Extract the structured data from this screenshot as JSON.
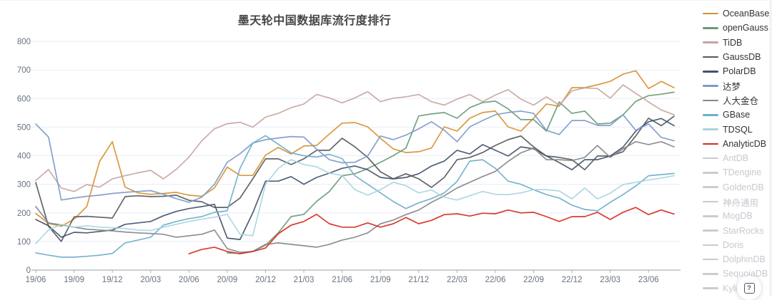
{
  "chart_data": {
    "type": "line",
    "title": "墨天轮中国数据库流行度排行",
    "xlabel": "",
    "ylabel": "",
    "ylim": [
      0,
      800
    ],
    "y_ticks": [
      0,
      100,
      200,
      300,
      400,
      500,
      600,
      700,
      800
    ],
    "grid": true,
    "legend_position": "right",
    "x": [
      "19/06",
      "19/07",
      "19/08",
      "19/09",
      "19/10",
      "19/11",
      "19/12",
      "20/01",
      "20/02",
      "20/03",
      "20/04",
      "20/05",
      "20/06",
      "20/07",
      "20/08",
      "20/09",
      "20/10",
      "20/11",
      "20/12",
      "21/01",
      "21/02",
      "21/03",
      "21/04",
      "21/05",
      "21/06",
      "21/07",
      "21/08",
      "21/09",
      "21/10",
      "21/11",
      "21/12",
      "22/01",
      "22/02",
      "22/03",
      "22/04",
      "22/05",
      "22/06",
      "22/07",
      "22/08",
      "22/09",
      "22/10",
      "22/11",
      "22/12",
      "23/01",
      "23/02",
      "23/03",
      "23/04",
      "23/05",
      "23/06",
      "23/07",
      "23/08"
    ],
    "x_tick_labels": [
      "19/06",
      "19/09",
      "19/12",
      "20/03",
      "20/06",
      "20/09",
      "20/12",
      "21/03",
      "21/06",
      "21/09",
      "21/12",
      "22/03",
      "22/06",
      "22/09",
      "22/12",
      "23/03",
      "23/06"
    ],
    "series": [
      {
        "name": "OceanBase",
        "color": "#d89030",
        "active": true,
        "values": [
          198,
          163,
          153,
          178,
          222,
          380,
          449,
          290,
          270,
          265,
          268,
          272,
          262,
          258,
          287,
          360,
          331,
          331,
          402,
          429,
          406,
          434,
          436,
          476,
          514,
          516,
          501,
          461,
          424,
          411,
          414,
          427,
          501,
          486,
          531,
          551,
          556,
          501,
          486,
          531,
          581,
          573,
          638,
          638,
          648,
          660,
          685,
          697,
          635,
          660,
          638
        ]
      },
      {
        "name": "openGauss",
        "color": "#6a9a76",
        "active": true,
        "values": [
          null,
          null,
          null,
          null,
          null,
          null,
          null,
          null,
          null,
          null,
          null,
          null,
          null,
          null,
          null,
          60,
          58,
          65,
          87,
          130,
          187,
          195,
          240,
          275,
          330,
          337,
          355,
          377,
          400,
          427,
          539,
          546,
          551,
          531,
          568,
          586,
          591,
          564,
          526,
          526,
          486,
          588,
          548,
          556,
          511,
          514,
          543,
          590,
          610,
          615,
          622
        ]
      },
      {
        "name": "TiDB",
        "color": "#c7a5a2",
        "active": true,
        "values": [
          313,
          352,
          287,
          275,
          299,
          290,
          319,
          330,
          340,
          349,
          319,
          352,
          395,
          452,
          494,
          512,
          517,
          500,
          535,
          548,
          568,
          581,
          614,
          602,
          585,
          602,
          624,
          589,
          601,
          606,
          614,
          589,
          577,
          598,
          614,
          589,
          612,
          631,
          598,
          577,
          606,
          577,
          627,
          637,
          635,
          601,
          648,
          618,
          588,
          560,
          543
        ]
      },
      {
        "name": "GaussDB",
        "color": "#55595c",
        "active": true,
        "values": [
          306,
          153,
          100,
          186,
          188,
          185,
          182,
          257,
          260,
          257,
          258,
          262,
          244,
          239,
          219,
          219,
          252,
          319,
          389,
          389,
          369,
          389,
          419,
          419,
          461,
          431,
          394,
          344,
          319,
          337,
          319,
          289,
          324,
          386,
          394,
          411,
          436,
          456,
          469,
          431,
          399,
          394,
          386,
          351,
          399,
          399,
          414,
          469,
          531,
          505,
          538
        ]
      },
      {
        "name": "PolarDB",
        "color": "#42526b",
        "active": true,
        "values": [
          177,
          155,
          115,
          132,
          130,
          135,
          140,
          160,
          165,
          170,
          190,
          205,
          215,
          222,
          230,
          112,
          107,
          200,
          311,
          311,
          327,
          300,
          324,
          339,
          356,
          364,
          351,
          324,
          319,
          324,
          337,
          364,
          381,
          419,
          406,
          439,
          419,
          399,
          431,
          424,
          399,
          376,
          351,
          386,
          386,
          399,
          430,
          486,
          519,
          530,
          505
        ]
      },
      {
        "name": "达梦",
        "color": "#7d9ac8",
        "active": true,
        "values": [
          511,
          465,
          245,
          252,
          258,
          262,
          268,
          272,
          275,
          278,
          265,
          250,
          237,
          255,
          300,
          377,
          407,
          444,
          456,
          462,
          467,
          465,
          423,
          386,
          375,
          377,
          399,
          469,
          456,
          472,
          494,
          519,
          489,
          449,
          501,
          523,
          543,
          551,
          556,
          548,
          489,
          474,
          523,
          523,
          506,
          506,
          543,
          489,
          511,
          464,
          452
        ]
      },
      {
        "name": "人大金仓",
        "color": "#85878a",
        "active": true,
        "values": [
          222,
          165,
          158,
          150,
          143,
          140,
          137,
          133,
          130,
          128,
          125,
          115,
          120,
          125,
          140,
          75,
          62,
          65,
          90,
          95,
          90,
          85,
          80,
          90,
          105,
          115,
          130,
          162,
          175,
          194,
          210,
          237,
          260,
          287,
          307,
          327,
          345,
          380,
          410,
          427,
          386,
          386,
          383,
          394,
          436,
          394,
          424,
          449,
          439,
          449,
          431
        ]
      },
      {
        "name": "GBase",
        "color": "#6faec9",
        "active": true,
        "values": [
          60,
          52,
          45,
          45,
          48,
          52,
          58,
          95,
          105,
          115,
          157,
          170,
          180,
          187,
          202,
          207,
          356,
          444,
          470,
          440,
          410,
          400,
          395,
          405,
          390,
          330,
          300,
          270,
          240,
          215,
          235,
          250,
          270,
          310,
          381,
          386,
          356,
          311,
          300,
          281,
          264,
          252,
          227,
          212,
          207,
          237,
          264,
          294,
          330,
          334,
          338
        ]
      },
      {
        "name": "TDSQL",
        "color": "#a8d5de",
        "active": true,
        "values": [
          93,
          140,
          160,
          150,
          155,
          150,
          148,
          145,
          140,
          138,
          150,
          160,
          170,
          178,
          185,
          195,
          125,
          120,
          300,
          356,
          386,
          369,
          361,
          339,
          331,
          281,
          262,
          281,
          307,
          295,
          270,
          280,
          255,
          245,
          260,
          275,
          265,
          264,
          270,
          281,
          281,
          277,
          249,
          287,
          249,
          269,
          299,
          307,
          315,
          322,
          330
        ]
      },
      {
        "name": "AnalyticDB",
        "color": "#d62b20",
        "active": true,
        "values": [
          null,
          null,
          null,
          null,
          null,
          null,
          null,
          null,
          null,
          null,
          null,
          null,
          57,
          72,
          80,
          65,
          57,
          65,
          77,
          127,
          157,
          170,
          195,
          162,
          150,
          150,
          165,
          150,
          162,
          184,
          162,
          174,
          194,
          197,
          189,
          199,
          197,
          210,
          200,
          202,
          187,
          170,
          187,
          187,
          202,
          177,
          202,
          219,
          194,
          210,
          196
        ]
      },
      {
        "name": "AntDB",
        "color": "#c9ccd1",
        "active": false,
        "values": null
      },
      {
        "name": "TDengine",
        "color": "#c9ccd1",
        "active": false,
        "values": null
      },
      {
        "name": "GoldenDB",
        "color": "#c9ccd1",
        "active": false,
        "values": null
      },
      {
        "name": "神舟通用",
        "color": "#c9ccd1",
        "active": false,
        "values": null
      },
      {
        "name": "MogDB",
        "color": "#c9ccd1",
        "active": false,
        "values": null
      },
      {
        "name": "StarRocks",
        "color": "#c9ccd1",
        "active": false,
        "values": null
      },
      {
        "name": "Doris",
        "color": "#c9ccd1",
        "active": false,
        "values": null
      },
      {
        "name": "DolphinDB",
        "color": "#c9ccd1",
        "active": false,
        "values": null
      },
      {
        "name": "SequoiaDB",
        "color": "#c9ccd1",
        "active": false,
        "values": null
      },
      {
        "name": "Kyligence",
        "color": "#c9ccd1",
        "active": false,
        "values": null
      }
    ]
  },
  "styles": {
    "grid_color": "#e7eef8",
    "axis_color": "#abb1ba",
    "tick_label_color": "#68727f",
    "title_color": "#464646"
  },
  "fab": {
    "icon": "question-icon",
    "glyph": "?"
  }
}
